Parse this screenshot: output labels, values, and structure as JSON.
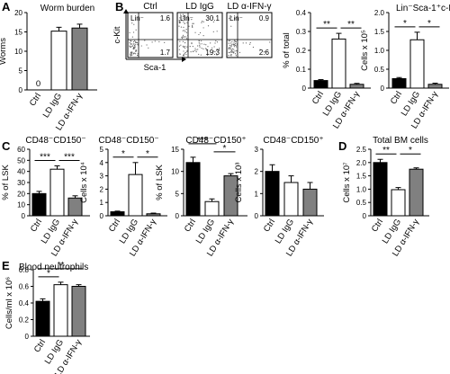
{
  "colors": {
    "ctrl": "#000000",
    "ld_igg": "#ffffff",
    "ld_anti_ifn": "#808080",
    "flow_dots": "#666666"
  },
  "chart_data": [
    {
      "id": "A",
      "type": "bar",
      "panel_letter": "A",
      "title": "Worm burden",
      "ylabel": "Worms",
      "ylim": [
        0,
        20
      ],
      "yticks": [
        "0",
        "5",
        "10",
        "15",
        "20"
      ],
      "categories": [
        "Ctrl",
        "LD IgG",
        "LD α-IFN-γ"
      ],
      "values": [
        0,
        15.2,
        16.0
      ],
      "errors": [
        0,
        1.0,
        1.0
      ],
      "value_labels": [
        "0",
        "",
        ""
      ],
      "sig": []
    },
    {
      "id": "B-flow",
      "type": "scatter",
      "panel_letter": "B",
      "xlabel": "Sca-1",
      "ylabel": "c-Kit",
      "gate_label": "Lin⁻",
      "plots": [
        {
          "title": "Ctrl",
          "quadrants": {
            "ul": "1.6",
            "ll": "1.7",
            "lr": ""
          }
        },
        {
          "title": "LD IgG",
          "quadrants": {
            "ul": "30.1",
            "ll": "",
            "lr": "19.3"
          }
        },
        {
          "title": "LD α-IFN-γ",
          "quadrants": {
            "ul": "0.9",
            "ll": "",
            "lr": "2.6"
          }
        }
      ]
    },
    {
      "id": "B1",
      "type": "bar",
      "title": "",
      "ylabel": "% of total",
      "ylim": [
        0,
        0.4
      ],
      "yticks": [
        "0",
        "0.1",
        "0.2",
        "0.3",
        "0.4"
      ],
      "categories": [
        "Ctrl",
        "LD IgG",
        "LD α-IFN-γ"
      ],
      "values": [
        0.04,
        0.26,
        0.02
      ],
      "errors": [
        0.005,
        0.03,
        0.005
      ],
      "sig": [
        {
          "a": 0,
          "b": 1,
          "label": "**",
          "level": 0
        },
        {
          "a": 1,
          "b": 2,
          "label": "**",
          "level": 0
        }
      ]
    },
    {
      "id": "B2",
      "type": "bar",
      "title": "Lin⁻Sca-1⁺c-Kit⁺",
      "ylabel": "Cells x 10⁵",
      "ylim": [
        0,
        2.0
      ],
      "yticks": [
        "0",
        "0.5",
        "1.0",
        "1.5",
        "2.0"
      ],
      "categories": [
        "Ctrl",
        "LD IgG",
        "LD α-IFN-γ"
      ],
      "values": [
        0.25,
        1.28,
        0.1
      ],
      "errors": [
        0.03,
        0.2,
        0.03
      ],
      "sig": [
        {
          "a": 0,
          "b": 1,
          "label": "*",
          "level": 0
        },
        {
          "a": 1,
          "b": 2,
          "label": "*",
          "level": 0
        }
      ]
    },
    {
      "id": "C1",
      "type": "bar",
      "panel_letter": "C",
      "title": "CD48⁻CD150⁻",
      "ylabel": "% of LSK",
      "ylim": [
        0,
        60
      ],
      "yticks": [
        "0",
        "10",
        "20",
        "30",
        "40",
        "50",
        "60"
      ],
      "categories": [
        "Ctrl",
        "LD IgG",
        "LD α-IFN-γ"
      ],
      "values": [
        20,
        42,
        16
      ],
      "errors": [
        2,
        3,
        2
      ],
      "sig": [
        {
          "a": 0,
          "b": 1,
          "label": "***",
          "level": 0
        },
        {
          "a": 1,
          "b": 2,
          "label": "***",
          "level": 0
        }
      ]
    },
    {
      "id": "C2",
      "type": "bar",
      "title": "CD48⁻CD150⁻",
      "ylabel": "Cells x 10⁴",
      "ylim": [
        0,
        5
      ],
      "yticks": [
        "0",
        "1",
        "2",
        "3",
        "4",
        "5"
      ],
      "categories": [
        "Ctrl",
        "LD IgG",
        "LD α-IFN-γ"
      ],
      "values": [
        0.3,
        3.1,
        0.15
      ],
      "errors": [
        0.05,
        0.9,
        0.05
      ],
      "sig": [
        {
          "a": 0,
          "b": 1,
          "label": "*",
          "level": 0
        },
        {
          "a": 1,
          "b": 2,
          "label": "*",
          "level": 0
        }
      ]
    },
    {
      "id": "C3",
      "type": "bar",
      "title": "CD48⁻CD150⁺",
      "ylabel": "% of LSK",
      "ylim": [
        0,
        15
      ],
      "yticks": [
        "0",
        "5",
        "10",
        "15"
      ],
      "categories": [
        "Ctrl",
        "LD IgG",
        "LD α-IFN-γ"
      ],
      "values": [
        12,
        3.2,
        9.0
      ],
      "errors": [
        1.2,
        0.6,
        0.5
      ],
      "sig": [
        {
          "a": 0,
          "b": 1,
          "label": "***",
          "level": 1
        },
        {
          "a": 1,
          "b": 2,
          "label": "*",
          "level": 0
        }
      ]
    },
    {
      "id": "C4",
      "type": "bar",
      "title": "CD48⁻CD150⁺",
      "ylabel": "Cells x 10³",
      "ylim": [
        0,
        3
      ],
      "yticks": [
        "0",
        "1",
        "2",
        "3"
      ],
      "categories": [
        "Ctrl",
        "LD IgG",
        "LD α-IFN-γ"
      ],
      "values": [
        2.0,
        1.5,
        1.2
      ],
      "errors": [
        0.3,
        0.3,
        0.3
      ],
      "sig": []
    },
    {
      "id": "D",
      "type": "bar",
      "panel_letter": "D",
      "title": "Total BM cells",
      "ylabel": "Cells x 10⁷",
      "ylim": [
        0,
        2.5
      ],
      "yticks": [
        "0",
        "0.5",
        "1.0",
        "1.5",
        "2.0",
        "2.5"
      ],
      "categories": [
        "Ctrl",
        "LD IgG",
        "LD α-IFN-γ"
      ],
      "values": [
        2.0,
        0.98,
        1.75
      ],
      "errors": [
        0.12,
        0.08,
        0.05
      ],
      "sig": [
        {
          "a": 0,
          "b": 1,
          "label": "**",
          "level": 0
        },
        {
          "a": 1,
          "b": 2,
          "label": "*",
          "level": 0
        }
      ]
    },
    {
      "id": "E",
      "type": "bar",
      "panel_letter": "E",
      "title": "Blood neutrophils",
      "ylabel": "Cells/ml x 10⁶",
      "ylim": [
        0,
        0.8
      ],
      "yticks": [
        "0",
        "0.2",
        "0.4",
        "0.6",
        "0.8"
      ],
      "categories": [
        "Ctrl",
        "LD IgG",
        "LD α-IFN-γ"
      ],
      "values": [
        0.42,
        0.62,
        0.6
      ],
      "errors": [
        0.03,
        0.03,
        0.02
      ],
      "sig": [
        {
          "a": 0,
          "b": 1,
          "label": "*",
          "level": 0
        },
        {
          "a": 0,
          "b": 2,
          "label": "**",
          "level": 1
        }
      ]
    }
  ]
}
